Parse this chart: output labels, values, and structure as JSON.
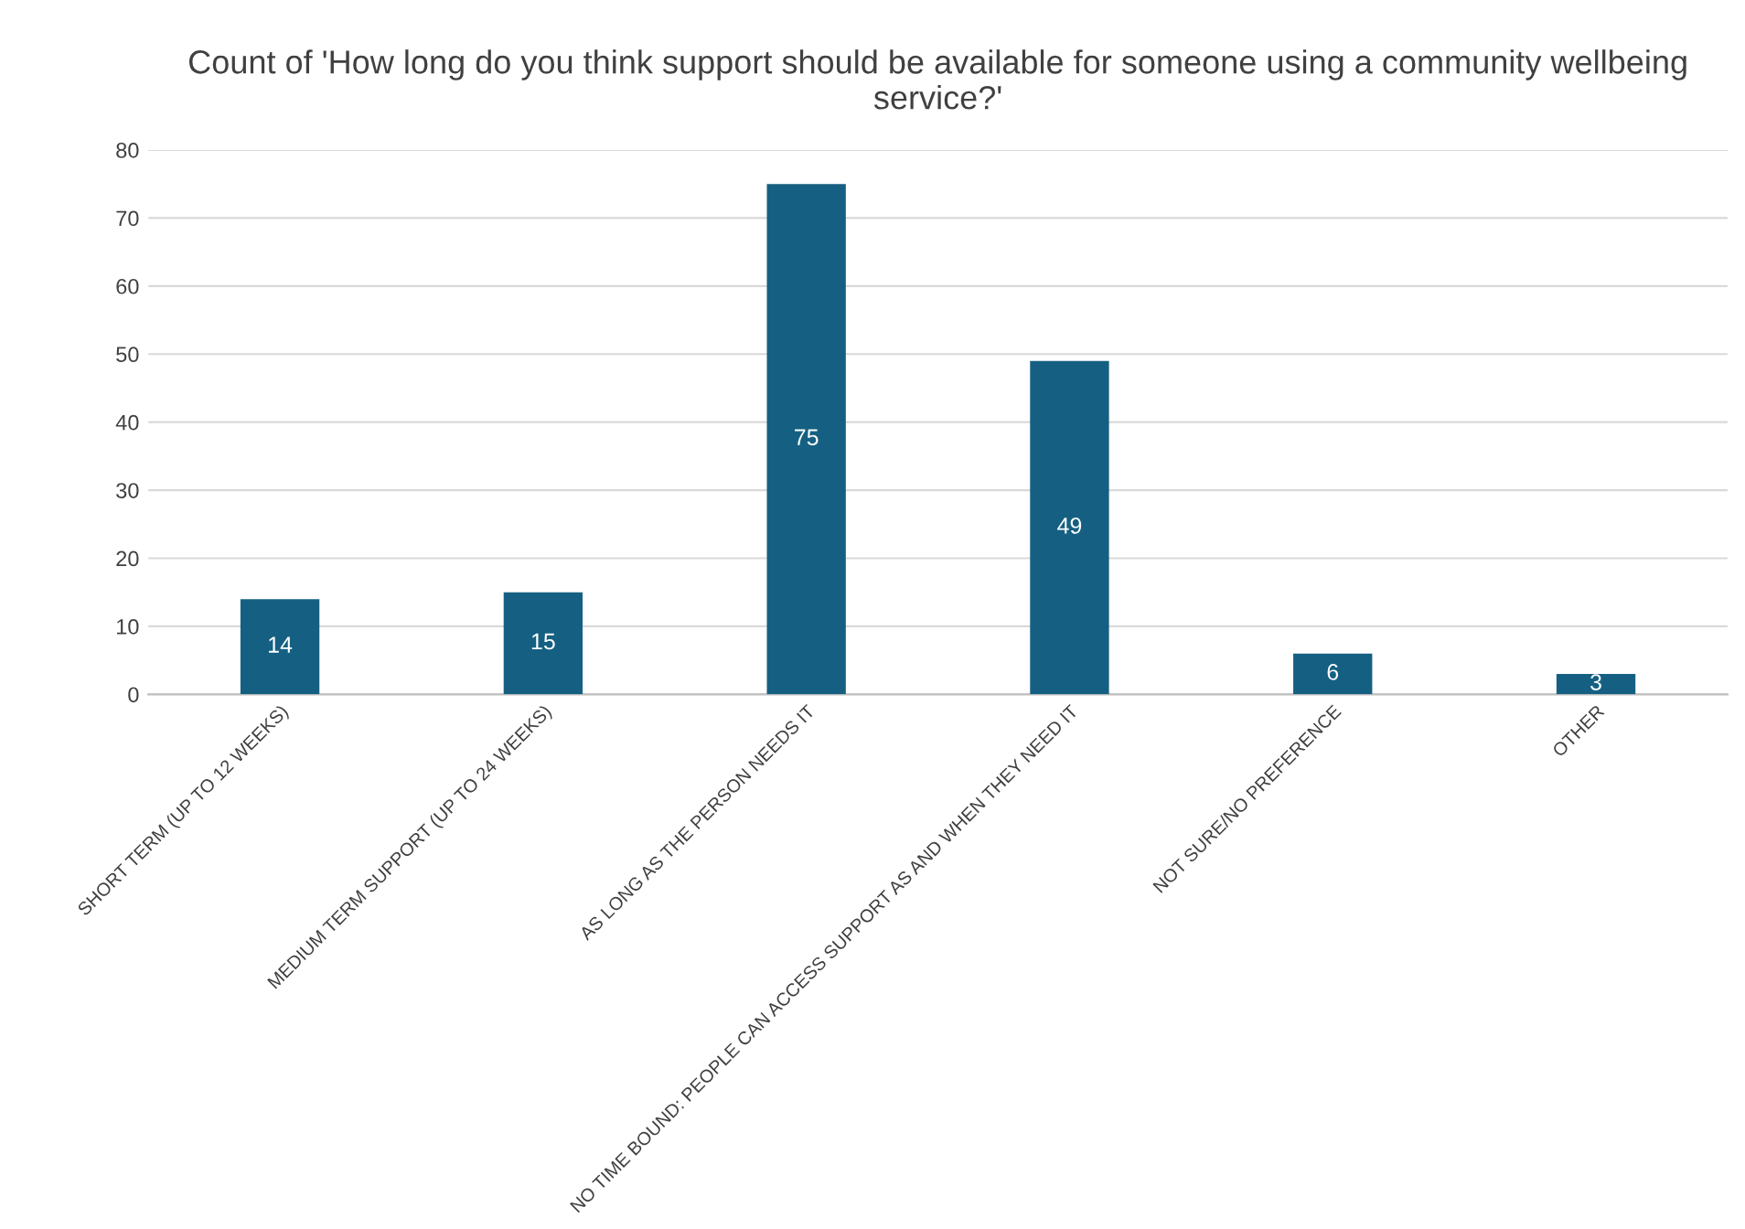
{
  "chart_data": {
    "type": "bar",
    "title": "Count of 'How long do you think support should be available for someone using a community wellbeing service?'",
    "categories": [
      "SHORT TERM (UP TO 12 WEEKS)",
      "MEDIUM TERM SUPPORT (UP TO 24 WEEKS)",
      "AS LONG AS THE PERSON NEEDS IT",
      "NO TIME BOUND: PEOPLE CAN ACCESS SUPPORT AS AND WHEN THEY NEED IT",
      "NOT SURE/NO PREFERENCE",
      "OTHER"
    ],
    "values": [
      14,
      15,
      75,
      49,
      6,
      3
    ],
    "color": "#156082",
    "ylim": [
      0,
      80
    ],
    "yticks": [
      0,
      10,
      20,
      30,
      40,
      50,
      60,
      70,
      80
    ],
    "grid": "y",
    "data_labels": true,
    "legend": false
  }
}
